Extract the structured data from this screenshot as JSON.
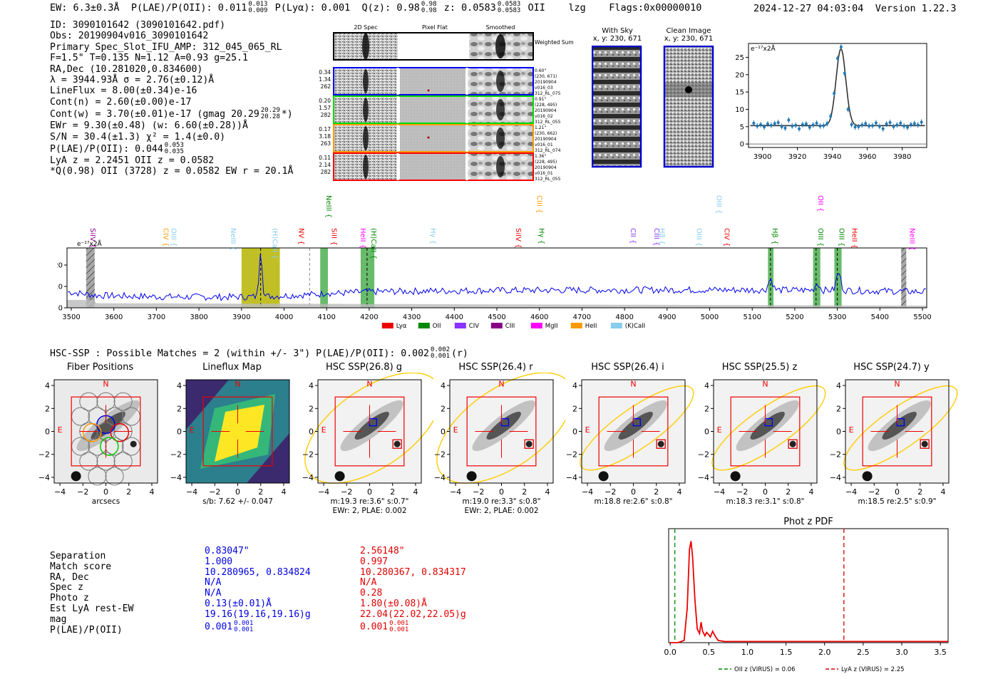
{
  "header": {
    "ew_label": "EW: 6.3±0.3Å",
    "plae_label": "P(LAE)/P(OII): 0.011",
    "plae_hi": "0.013",
    "plae_lo": "0.009",
    "plya": "P(Lyα): 0.001",
    "qz_label": "Q(z): 0.98",
    "qz_hi": "0.98",
    "qz_lo": "0.98",
    "z_label": "z: 0.0583",
    "z_hi": "0.0583",
    "z_lo": "0.0583",
    "z_line": "OII",
    "code": "lzg",
    "flags": "Flags:0x00000010",
    "datetime": "2024-12-27 04:03:04",
    "version": "Version 1.22.3"
  },
  "info": {
    "id": "ID: 3090101642 (3090101642.pdf)",
    "obs": "Obs: 20190904v016_3090101642",
    "slot": "Primary Spec_Slot_IFU_AMP: 312_045_065_RL",
    "fparams": "F=1.5\"  T=0.135  N=1.12  A=0.93  g=25.1",
    "radec": "RA,Dec (10.281020,0.834600)",
    "lambda": "λ = 3944.93Å  σ = 2.76(±0.12)Å",
    "lineflux": "LineFlux = 8.00(±0.34)e-16",
    "contn": "Cont(n) = 2.60(±0.00)e-17",
    "contw": "Cont(w) = 3.70(±0.01)e-17 (gmag 20.29",
    "contw_hi": "20.29",
    "contw_lo": "20.28",
    "contw_end": "*)",
    "ewr": "EWr = 9.30(±0.48) (w: 6.60(±0.28))Å",
    "sn": "S/N = 30.4(±1.3)  χ² = 1.4(±0.0)",
    "plae": "P(LAE)/P(OII): 0.044",
    "plae_hi": "0.053",
    "plae_lo": "0.035",
    "lya": "LyA z = 2.2451  OII z = 0.0582",
    "best": "*Q(0.98) OII (3728) z = 0.0582  EW r = 20.1Å"
  },
  "spec2d": {
    "col_titles": [
      "2D Spec",
      "Pixel Flat",
      "Smoothed"
    ],
    "weighted": "Weighted Sum",
    "rows": [
      {
        "left": [
          "0.34",
          "1.34",
          "262"
        ],
        "right": [
          "0.60\"",
          "(230, 671)",
          "20190904",
          "v016_03",
          "312_RL_075"
        ],
        "color": "#0000ff"
      },
      {
        "left": [
          "0.20",
          "1.57",
          "282"
        ],
        "right": [
          "0.91\"",
          "(228, 495)",
          "20190904",
          "v016_02",
          "312_RL_055"
        ],
        "color": "#00dd00"
      },
      {
        "left": [
          "0.17",
          "3.18",
          "263"
        ],
        "right": [
          "1.21\"",
          "(230, 662)",
          "20190904",
          "v016_01",
          "312_RL_074"
        ],
        "color": "#ff9900"
      },
      {
        "left": [
          "0.11",
          "2.14",
          "282"
        ],
        "right": [
          "1.36\"",
          "(228, 495)",
          "20190904",
          "v016_01",
          "312_RL_055"
        ],
        "color": "#ff0000"
      }
    ]
  },
  "stamps_top": {
    "with_sky": "With Sky",
    "with_sky_xy": "x, y: 230, 671",
    "clean": "Clean Image",
    "clean_xy": "x, y: 230, 671"
  },
  "chart_data": [
    {
      "type": "scatter",
      "title": "Emission line fit",
      "ylabel": "e⁻¹⁷x2Å",
      "xlim": [
        3892,
        3994
      ],
      "ylim": [
        -1,
        29
      ],
      "xticks": [
        "3900",
        "3920",
        "3940",
        "3960",
        "3980"
      ],
      "yticks": [
        "0",
        "5",
        "10",
        "15",
        "20",
        "25"
      ],
      "x": [
        3895,
        3897,
        3899,
        3901,
        3903,
        3905,
        3907,
        3909,
        3911,
        3913,
        3915,
        3917,
        3919,
        3921,
        3923,
        3925,
        3927,
        3929,
        3931,
        3933,
        3935,
        3937,
        3939,
        3941,
        3943,
        3945,
        3947,
        3949,
        3951,
        3953,
        3955,
        3957,
        3959,
        3961,
        3963,
        3965,
        3967,
        3969,
        3971,
        3973,
        3975,
        3977,
        3979,
        3981,
        3983,
        3985,
        3987,
        3989,
        3991
      ],
      "y": [
        6.0,
        5.2,
        5.6,
        4.9,
        5.8,
        5.4,
        5.9,
        6.2,
        5.0,
        4.6,
        6.9,
        5.2,
        5.4,
        4.4,
        5.6,
        5.8,
        4.8,
        5.5,
        6.0,
        5.2,
        5.3,
        5.9,
        8.0,
        14.6,
        24.7,
        28.0,
        20.4,
        10.0,
        5.6,
        4.9,
        5.0,
        5.5,
        5.9,
        5.2,
        5.3,
        6.1,
        5.1,
        4.4,
        5.8,
        6.2,
        5.0,
        5.5,
        6.0,
        5.2,
        4.8,
        5.6,
        5.9,
        5.5,
        6.3
      ],
      "model_continuum": 5.3,
      "model_peak": 27.5,
      "model_center": 3944.9,
      "model_sigma": 2.76
    },
    {
      "type": "line",
      "title": "Full spectrum",
      "ylabel": "e⁻¹⁷x2Å",
      "xlim": [
        3490,
        5510
      ],
      "ylim": [
        0,
        28
      ],
      "xticks": [
        "3500",
        "3600",
        "3700",
        "3800",
        "3900",
        "4000",
        "4100",
        "4200",
        "4300",
        "4400",
        "4500",
        "4600",
        "4700",
        "4800",
        "4900",
        "5000",
        "5100",
        "5200",
        "5300",
        "5400",
        "5500"
      ],
      "yticks": [
        "0",
        "10",
        "20"
      ],
      "continuum": [
        [
          3490,
          7.5
        ],
        [
          3560,
          5.8
        ],
        [
          3700,
          5.2
        ],
        [
          3850,
          5.0
        ],
        [
          3940,
          5.2
        ],
        [
          4100,
          6.5
        ],
        [
          4200,
          7.5
        ],
        [
          4400,
          8.0
        ],
        [
          4700,
          8.3
        ],
        [
          5000,
          8.4
        ],
        [
          5300,
          8.2
        ],
        [
          5510,
          7.5
        ]
      ],
      "peaks": [
        {
          "x": 3945,
          "y": 27.5
        },
        {
          "x": 4100,
          "y": 7.5
        },
        {
          "x": 5143,
          "y": 13.5
        },
        {
          "x": 5253,
          "y": 11.5
        },
        {
          "x": 5303,
          "y": 16.5
        }
      ],
      "legend": [
        {
          "label": "Lyα",
          "color": "#ee0000"
        },
        {
          "label": "OII",
          "color": "#008800"
        },
        {
          "label": "CIV",
          "color": "#8833ff"
        },
        {
          "label": "CIII",
          "color": "#880088"
        },
        {
          "label": "MgII",
          "color": "#ff00ff"
        },
        {
          "label": "HeII",
          "color": "#ff9900"
        },
        {
          "label": "(K)CaII",
          "color": "#88ccee"
        }
      ],
      "line_labels": [
        {
          "name": "SiIV",
          "x": 3540,
          "color": "#880088",
          "level": 0
        },
        {
          "name": "CIV",
          "x": 3712,
          "color": "#ff9900",
          "level": 0
        },
        {
          "name": "OIII",
          "x": 3730,
          "color": "#88ccee",
          "level": 0
        },
        {
          "name": "NeIII",
          "x": 3870,
          "color": "#88ccee",
          "level": 0
        },
        {
          "name": "(H)CaII",
          "x": 3968,
          "color": "#88ccee",
          "level": 0
        },
        {
          "name": "NV",
          "x": 4030,
          "color": "#ee0000",
          "level": 0
        },
        {
          "name": "NeIII",
          "x": 4095,
          "color": "#008800",
          "level": 2
        },
        {
          "name": "SiII",
          "x": 4107,
          "color": "#ee0000",
          "level": 0
        },
        {
          "name": "HeII",
          "x": 4175,
          "color": "#ff00ff",
          "level": 0
        },
        {
          "name": "(H)CaII",
          "x": 4200,
          "color": "#008800",
          "level": 0
        },
        {
          "name": "Hγ",
          "x": 4340,
          "color": "#88ccee",
          "level": 0
        },
        {
          "name": "SiIV",
          "x": 4540,
          "color": "#ee0000",
          "level": 0
        },
        {
          "name": "CIII",
          "x": 4590,
          "color": "#ff9900",
          "level": 2
        },
        {
          "name": "Hγ",
          "x": 4595,
          "color": "#008800",
          "level": 0
        },
        {
          "name": "CII",
          "x": 4810,
          "color": "#8833ff",
          "level": 0
        },
        {
          "name": "CIII",
          "x": 4865,
          "color": "#8833ff",
          "level": 0
        },
        {
          "name": "Hβ",
          "x": 4878,
          "color": "#88ccee",
          "level": 0
        },
        {
          "name": "OIII",
          "x": 4965,
          "color": "#88ccee",
          "level": 0
        },
        {
          "name": "OIII",
          "x": 5012,
          "color": "#88ccee",
          "level": 2
        },
        {
          "name": "CIV",
          "x": 5030,
          "color": "#ee0000",
          "level": 0
        },
        {
          "name": "Hβ",
          "x": 5143,
          "color": "#008800",
          "level": 0
        },
        {
          "name": "OIII",
          "x": 5250,
          "color": "#008800",
          "level": 0
        },
        {
          "name": "OII",
          "x": 5250,
          "color": "#ff00ff",
          "level": 2
        },
        {
          "name": "OIII",
          "x": 5300,
          "color": "#008800",
          "level": 0
        },
        {
          "name": "HeII",
          "x": 5330,
          "color": "#ee0000",
          "level": 0
        },
        {
          "name": "NeIII",
          "x": 5466,
          "color": "#ff00ff",
          "level": 0
        }
      ],
      "bands": [
        {
          "x0": 3535,
          "x1": 3555,
          "color": "#999999",
          "hatch": true
        },
        {
          "x0": 3900,
          "x1": 3990,
          "color": "#b5b500",
          "hatch": false
        },
        {
          "x0": 4085,
          "x1": 4103,
          "color": "#4caf50",
          "hatch": false
        },
        {
          "x0": 4180,
          "x1": 4212,
          "color": "#4caf50",
          "hatch": false
        },
        {
          "x0": 5137,
          "x1": 5150,
          "color": "#4caf50",
          "hatch": false
        },
        {
          "x0": 5243,
          "x1": 5260,
          "color": "#4caf50",
          "hatch": false
        },
        {
          "x0": 5293,
          "x1": 5310,
          "color": "#4caf50",
          "hatch": false
        },
        {
          "x0": 5450,
          "x1": 5462,
          "color": "#999999",
          "hatch": true
        }
      ],
      "vlines": [
        {
          "x": 3945,
          "color": "#000000"
        },
        {
          "x": 4060,
          "color": "#888888"
        },
        {
          "x": 4195,
          "color": "#000000"
        },
        {
          "x": 5143,
          "color": "#000000"
        },
        {
          "x": 5250,
          "color": "#000000"
        },
        {
          "x": 5300,
          "color": "#000000"
        }
      ]
    },
    {
      "type": "line",
      "title": "Phot z PDF",
      "xlim": [
        -0.02,
        3.6
      ],
      "ylim": [
        0,
        1
      ],
      "xticks": [
        "0.0",
        "0.5",
        "1.0",
        "1.5",
        "2.0",
        "2.5",
        "3.0",
        "3.5"
      ],
      "x": [
        0,
        0.1,
        0.18,
        0.22,
        0.25,
        0.27,
        0.29,
        0.32,
        0.35,
        0.38,
        0.4,
        0.42,
        0.45,
        0.47,
        0.5,
        0.52,
        0.55,
        0.58,
        0.62,
        0.7,
        1.0,
        2.0,
        3.6
      ],
      "y": [
        0,
        0.0,
        0.02,
        0.3,
        0.82,
        0.89,
        0.75,
        0.38,
        0.12,
        0.08,
        0.18,
        0.1,
        0.06,
        0.09,
        0.07,
        0.05,
        0.1,
        0.06,
        0.02,
        0.01,
        0.01,
        0.01,
        0.01
      ],
      "vlines": [
        {
          "x": 0.06,
          "color": "#008800",
          "label": "OII z (VIRUS) = 0.06"
        },
        {
          "x": 2.25,
          "color": "#dd0000",
          "label": "LyA z (VIRUS) = 2.25"
        }
      ]
    }
  ],
  "hsc": {
    "line": "HSC-SSP : Possible Matches = 2 (within +/- 3\")  P(LAE)/P(OII): 0.002",
    "hi": "0.002",
    "lo": "0.001",
    "band": "(r)"
  },
  "stamps": [
    {
      "title": "Fiber Positions",
      "cap1": "arcsecs",
      "cap2": "",
      "kind": "fiber"
    },
    {
      "title": "Lineflux Map",
      "cap1": "s/b: 7.62 +/- 0.047",
      "cap2": "",
      "kind": "flux"
    },
    {
      "title": "HSC SSP(26.8) g",
      "cap1": "m:19.3   re:3.6\"   s:0.7\"",
      "cap2": "EWr: 2, PLAE: 0.002",
      "kind": "hsc"
    },
    {
      "title": "HSC SSP(26.4) r",
      "cap1": "m:19.0   re:3.3\"   s:0.8\"",
      "cap2": "EWr: 2, PLAE: 0.002",
      "kind": "hsc"
    },
    {
      "title": "HSC SSP(26.4) i",
      "cap1": "m:18.8   re:2.6\"   s:0.8\"",
      "cap2": "",
      "kind": "hsc"
    },
    {
      "title": "HSC SSP(25.5) z",
      "cap1": "m:18.3   re:3.1\"   s:0.8\"",
      "cap2": "",
      "kind": "hsc"
    },
    {
      "title": "HSC SSP(24.7) y",
      "cap1": "m:18.5   re:2.5\"   s:0.9\"",
      "cap2": "",
      "kind": "hsc"
    }
  ],
  "stamp_axis": {
    "xticks": [
      "−4",
      "−2",
      "0",
      "2",
      "4"
    ],
    "yticks": [
      "4",
      "2",
      "0",
      "−2",
      "−4"
    ],
    "n": "N",
    "e": "E"
  },
  "table": {
    "labels": [
      "Separation",
      "Match score",
      "RA, Dec",
      "Spec z",
      "Photo z",
      "Est LyA rest-EW",
      "mag",
      "P(LAE)/P(OII)"
    ],
    "col1": [
      "0.83047\"",
      "1.000",
      "10.280965, 0.834824",
      "N/A",
      "N/A",
      "0.13(±0.01)Å",
      "19.16(19.16,19.16)g",
      "0.001"
    ],
    "col1_hi": "0.001",
    "col1_lo": "0.001",
    "col2": [
      "2.56148\"",
      "0.997",
      "10.280367, 0.834317",
      "N/A",
      "0.28",
      "1.80(±0.08)Å",
      "22.04(22.02,22.05)g",
      "0.001"
    ],
    "col2_hi": "0.001",
    "col2_lo": "0.001"
  }
}
